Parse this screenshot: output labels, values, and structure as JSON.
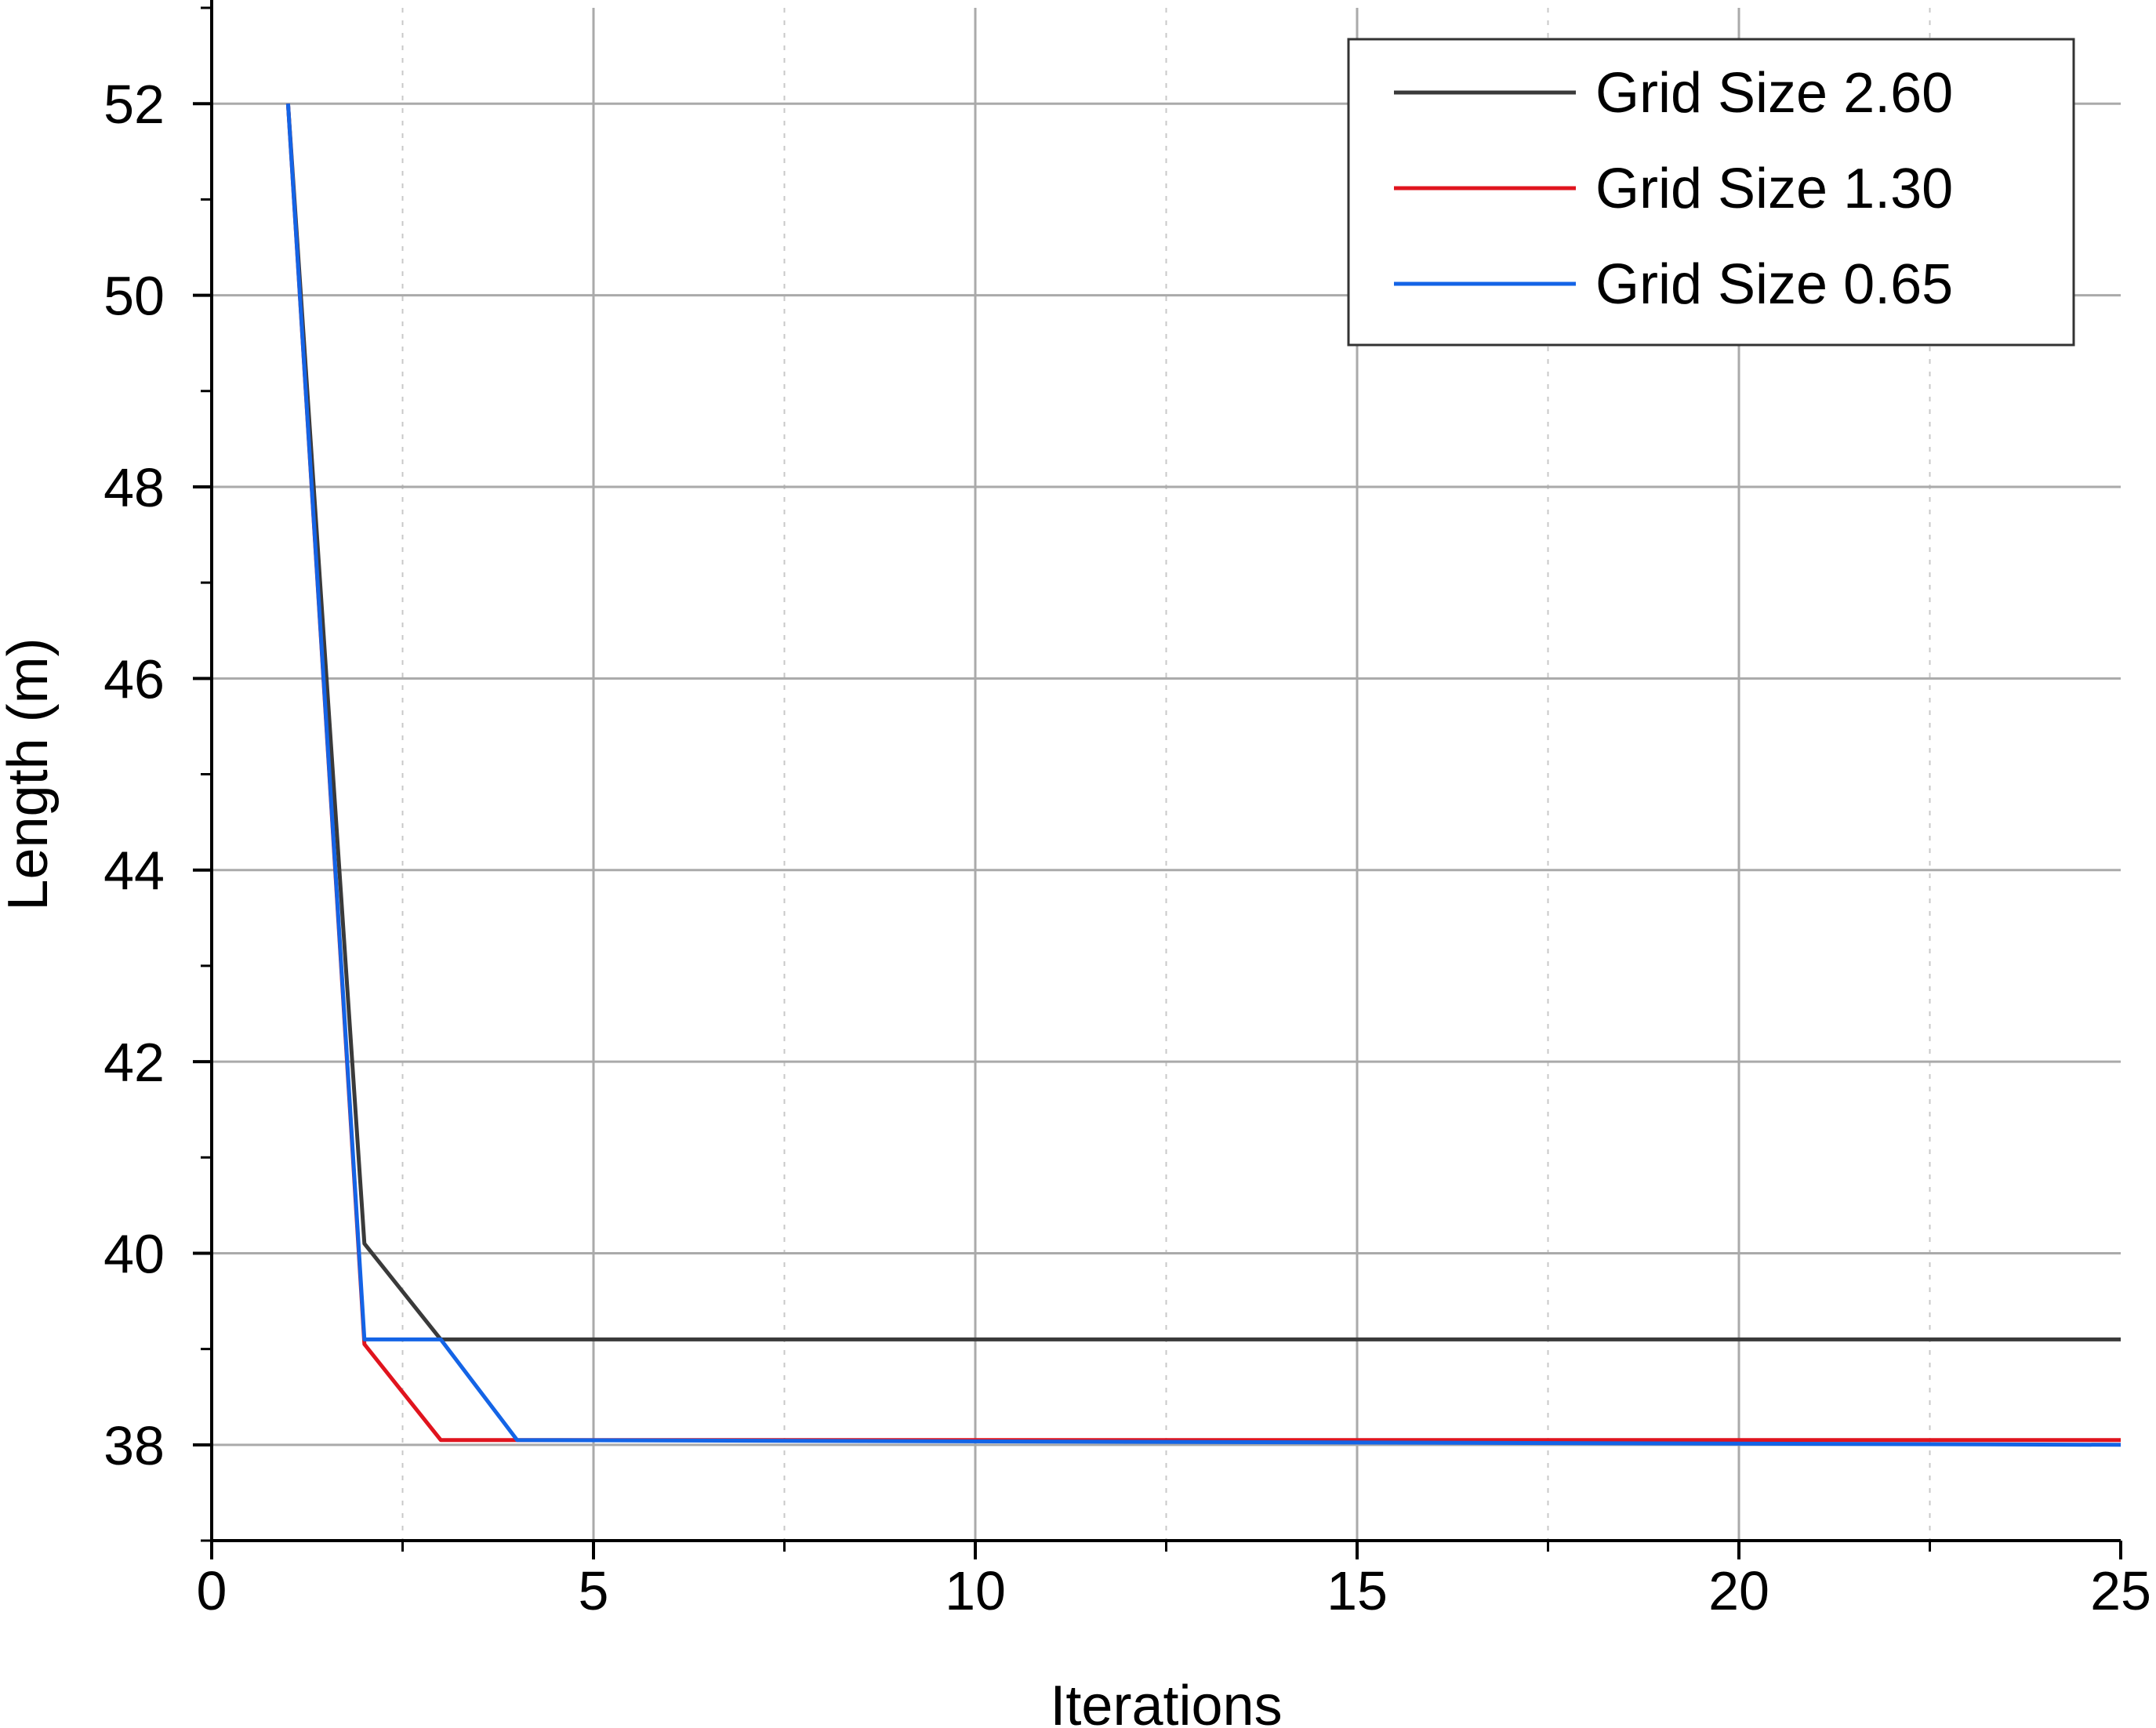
{
  "chart_data": {
    "type": "line",
    "title": "",
    "xlabel": "Iterations",
    "ylabel": "Length (m)",
    "xlim": [
      0,
      25
    ],
    "ylim": [
      37,
      53
    ],
    "xticks": [
      0,
      5,
      10,
      15,
      20,
      25
    ],
    "yticks": [
      38,
      40,
      42,
      44,
      46,
      48,
      50,
      52
    ],
    "grid": true,
    "legend_position": "top-right",
    "series": [
      {
        "name": "Grid Size 2.60",
        "color": "#3a3a3a",
        "x": [
          1,
          2,
          3,
          25
        ],
        "y": [
          52,
          40.1,
          39.1,
          39.1
        ]
      },
      {
        "name": "Grid Size 1.30",
        "color": "#e0141e",
        "x": [
          1,
          2,
          3,
          25
        ],
        "y": [
          52,
          39.05,
          38.05,
          38.05
        ]
      },
      {
        "name": "Grid Size 0.65",
        "color": "#1464e6",
        "x": [
          1,
          2,
          3,
          4,
          25
        ],
        "y": [
          52,
          39.1,
          39.1,
          38.05,
          38.0
        ]
      }
    ]
  }
}
